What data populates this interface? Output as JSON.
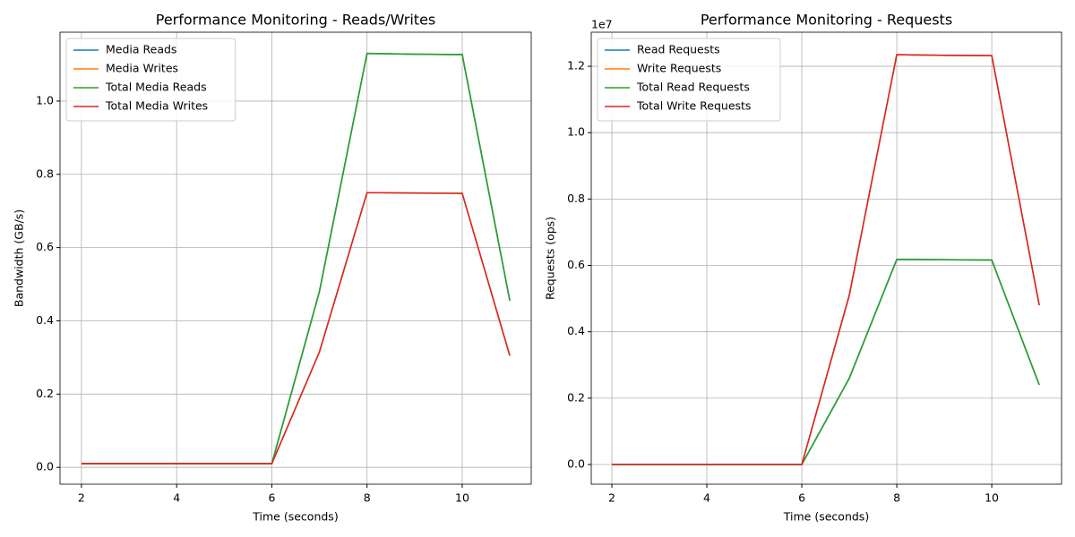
{
  "chart_data": [
    {
      "type": "line",
      "title": "Performance Monitoring - Reads/Writes",
      "x_label": "Time (seconds)",
      "y_label": "Bandwidth (GB/s)",
      "x": [
        2,
        3,
        4,
        5,
        6,
        7,
        8,
        9,
        10,
        11
      ],
      "series": [
        {
          "name": "Media Reads",
          "color": "#1f77b4",
          "values": [
            0.01,
            0.01,
            0.01,
            0.01,
            0.01,
            0.48,
            1.13,
            1.128,
            1.127,
            0.455
          ]
        },
        {
          "name": "Media Writes",
          "color": "#ff7f0e",
          "values": [
            0.01,
            0.01,
            0.01,
            0.01,
            0.01,
            0.315,
            0.75,
            0.749,
            0.748,
            0.305
          ]
        },
        {
          "name": "Total Media Reads",
          "color": "#2ca02c",
          "values": [
            0.01,
            0.01,
            0.01,
            0.01,
            0.01,
            0.48,
            1.13,
            1.128,
            1.127,
            0.455
          ]
        },
        {
          "name": "Total Media Writes",
          "color": "#d62728",
          "values": [
            0.01,
            0.01,
            0.01,
            0.01,
            0.01,
            0.315,
            0.75,
            0.749,
            0.748,
            0.305
          ]
        }
      ],
      "xlim": [
        1.55,
        11.45
      ],
      "ylim": [
        -0.046,
        1.188
      ],
      "xticks": [
        2,
        4,
        6,
        8,
        10
      ],
      "yticks": [
        {
          "value": 0,
          "label": "0.0"
        },
        0.2,
        0.4,
        0.6,
        0.8,
        {
          "value": 1,
          "label": "1.0"
        }
      ],
      "grid": true,
      "legend": "upper left"
    },
    {
      "type": "line",
      "title": "Performance Monitoring - Requests",
      "x_label": "Time (seconds)",
      "y_label": "Requests (ops)",
      "offset_label": "1e7",
      "x": [
        2,
        3,
        4,
        5,
        6,
        7,
        8,
        9,
        10,
        11
      ],
      "series": [
        {
          "name": "Read Requests",
          "color": "#1f77b4",
          "values": [
            0,
            0,
            0,
            0,
            0,
            2600000,
            6180000,
            6170000,
            6160000,
            2400000
          ]
        },
        {
          "name": "Write Requests",
          "color": "#ff7f0e",
          "values": [
            0,
            0,
            0,
            0,
            0,
            5100000,
            12350000,
            12330000,
            12320000,
            4800000
          ]
        },
        {
          "name": "Total Read Requests",
          "color": "#2ca02c",
          "values": [
            0,
            0,
            0,
            0,
            0,
            2600000,
            6180000,
            6170000,
            6160000,
            2400000
          ]
        },
        {
          "name": "Total Write Requests",
          "color": "#d62728",
          "values": [
            0,
            0,
            0,
            0,
            0,
            5100000,
            12350000,
            12330000,
            12320000,
            4800000
          ]
        }
      ],
      "xlim": [
        1.566,
        11.47
      ],
      "ylim": [
        -593000,
        13026000
      ],
      "xticks": [
        2,
        4,
        6,
        8,
        10
      ],
      "yticks": [
        {
          "value": 0,
          "label": "0.0"
        },
        {
          "value": 2000000,
          "label": "0.2"
        },
        {
          "value": 4000000,
          "label": "0.4"
        },
        {
          "value": 6000000,
          "label": "0.6"
        },
        {
          "value": 8000000,
          "label": "0.8"
        },
        {
          "value": 10000000,
          "label": "1.0"
        },
        {
          "value": 12000000,
          "label": "1.2"
        }
      ],
      "grid": true,
      "legend": "upper left"
    }
  ]
}
